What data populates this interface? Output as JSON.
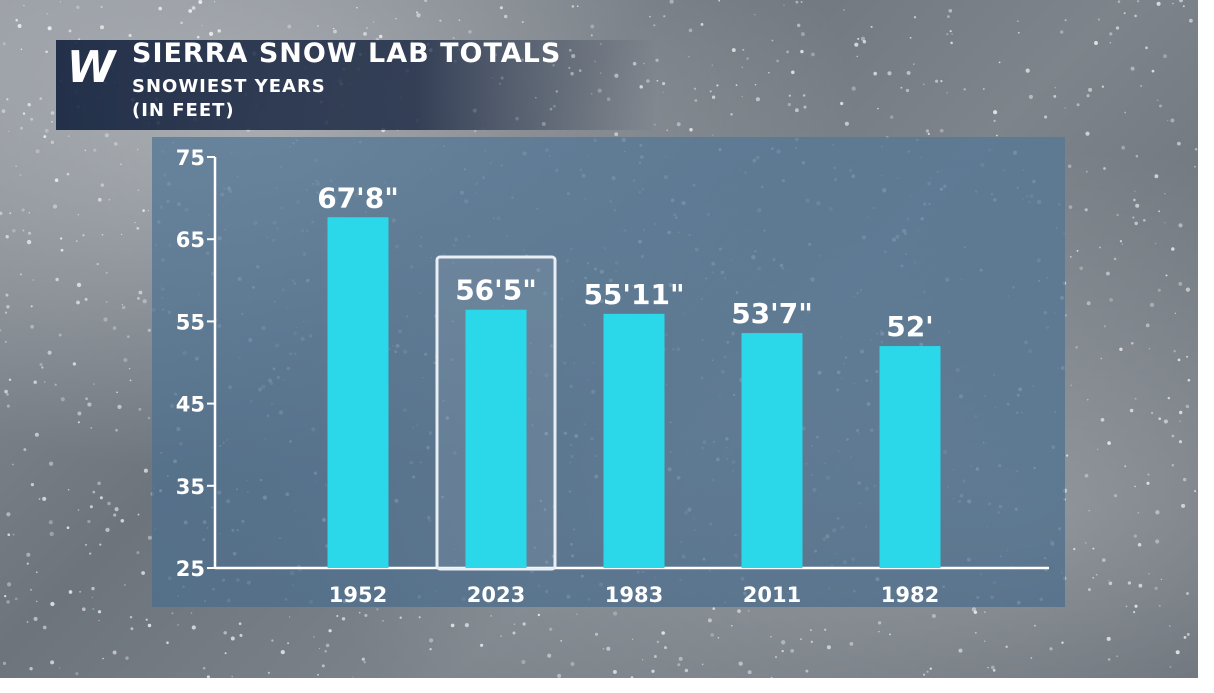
{
  "header": {
    "logo_letter": "W",
    "title": "SIERRA SNOW LAB TOTALS",
    "subtitle_line1": "SNOWIEST YEARS",
    "subtitle_line2": "(IN FEET)"
  },
  "colors": {
    "bar": "#2ad8ea",
    "highlight_box": "#e8eef4",
    "axis": "#ffffff",
    "header_bg": "#12203c"
  },
  "chart_data": {
    "type": "bar",
    "categories": [
      "1952",
      "2023",
      "1983",
      "2011",
      "1982"
    ],
    "values": [
      67.67,
      56.42,
      55.92,
      53.58,
      52
    ],
    "data_labels": [
      "67'8\"",
      "56'5\"",
      "55'11\"",
      "53'7\"",
      "52'"
    ],
    "ylim": [
      25,
      75
    ],
    "yticks": [
      25,
      35,
      45,
      55,
      65,
      75
    ],
    "highlighted_category": "2023",
    "grid": false
  }
}
